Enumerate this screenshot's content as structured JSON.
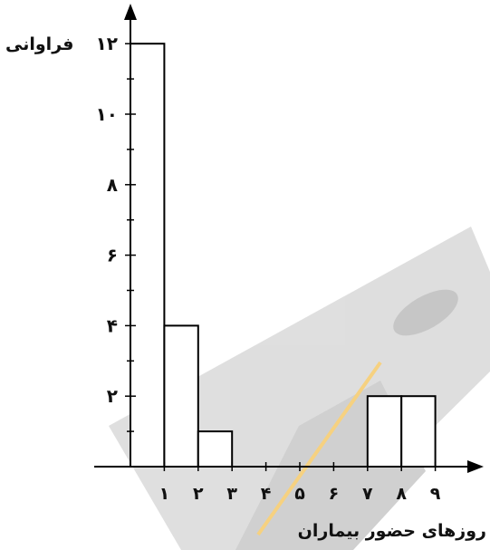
{
  "chart_data": {
    "type": "bar",
    "ylabel": "فراوانی",
    "xlabel": "روزهای حضور بیماران",
    "bins": [
      {
        "from": 0,
        "to": 1,
        "value": 12
      },
      {
        "from": 1,
        "to": 2,
        "value": 4
      },
      {
        "from": 2,
        "to": 3,
        "value": 1
      },
      {
        "from": 3,
        "to": 4,
        "value": 0
      },
      {
        "from": 4,
        "to": 5,
        "value": 0
      },
      {
        "from": 5,
        "to": 6,
        "value": 0
      },
      {
        "from": 6,
        "to": 7,
        "value": 0
      },
      {
        "from": 7,
        "to": 8,
        "value": 2
      },
      {
        "from": 8,
        "to": 9,
        "value": 2
      }
    ],
    "x_ticks": [
      {
        "value": 1,
        "label": "۱"
      },
      {
        "value": 2,
        "label": "۲"
      },
      {
        "value": 3,
        "label": "۳"
      },
      {
        "value": 4,
        "label": "۴"
      },
      {
        "value": 5,
        "label": "۵"
      },
      {
        "value": 6,
        "label": "۶"
      },
      {
        "value": 7,
        "label": "۷"
      },
      {
        "value": 8,
        "label": "۸"
      },
      {
        "value": 9,
        "label": "۹"
      }
    ],
    "y_ticks": [
      {
        "value": 2,
        "label": "۲"
      },
      {
        "value": 4,
        "label": "۴"
      },
      {
        "value": 6,
        "label": "۶"
      },
      {
        "value": 8,
        "label": "۸"
      },
      {
        "value": 10,
        "label": "۱۰"
      },
      {
        "value": 12,
        "label": "۱۲"
      }
    ],
    "ylim": [
      0,
      12
    ],
    "xlim": [
      0,
      9
    ],
    "grid": false,
    "bar_fill": "#ffffff",
    "bar_stroke": "#000000"
  }
}
